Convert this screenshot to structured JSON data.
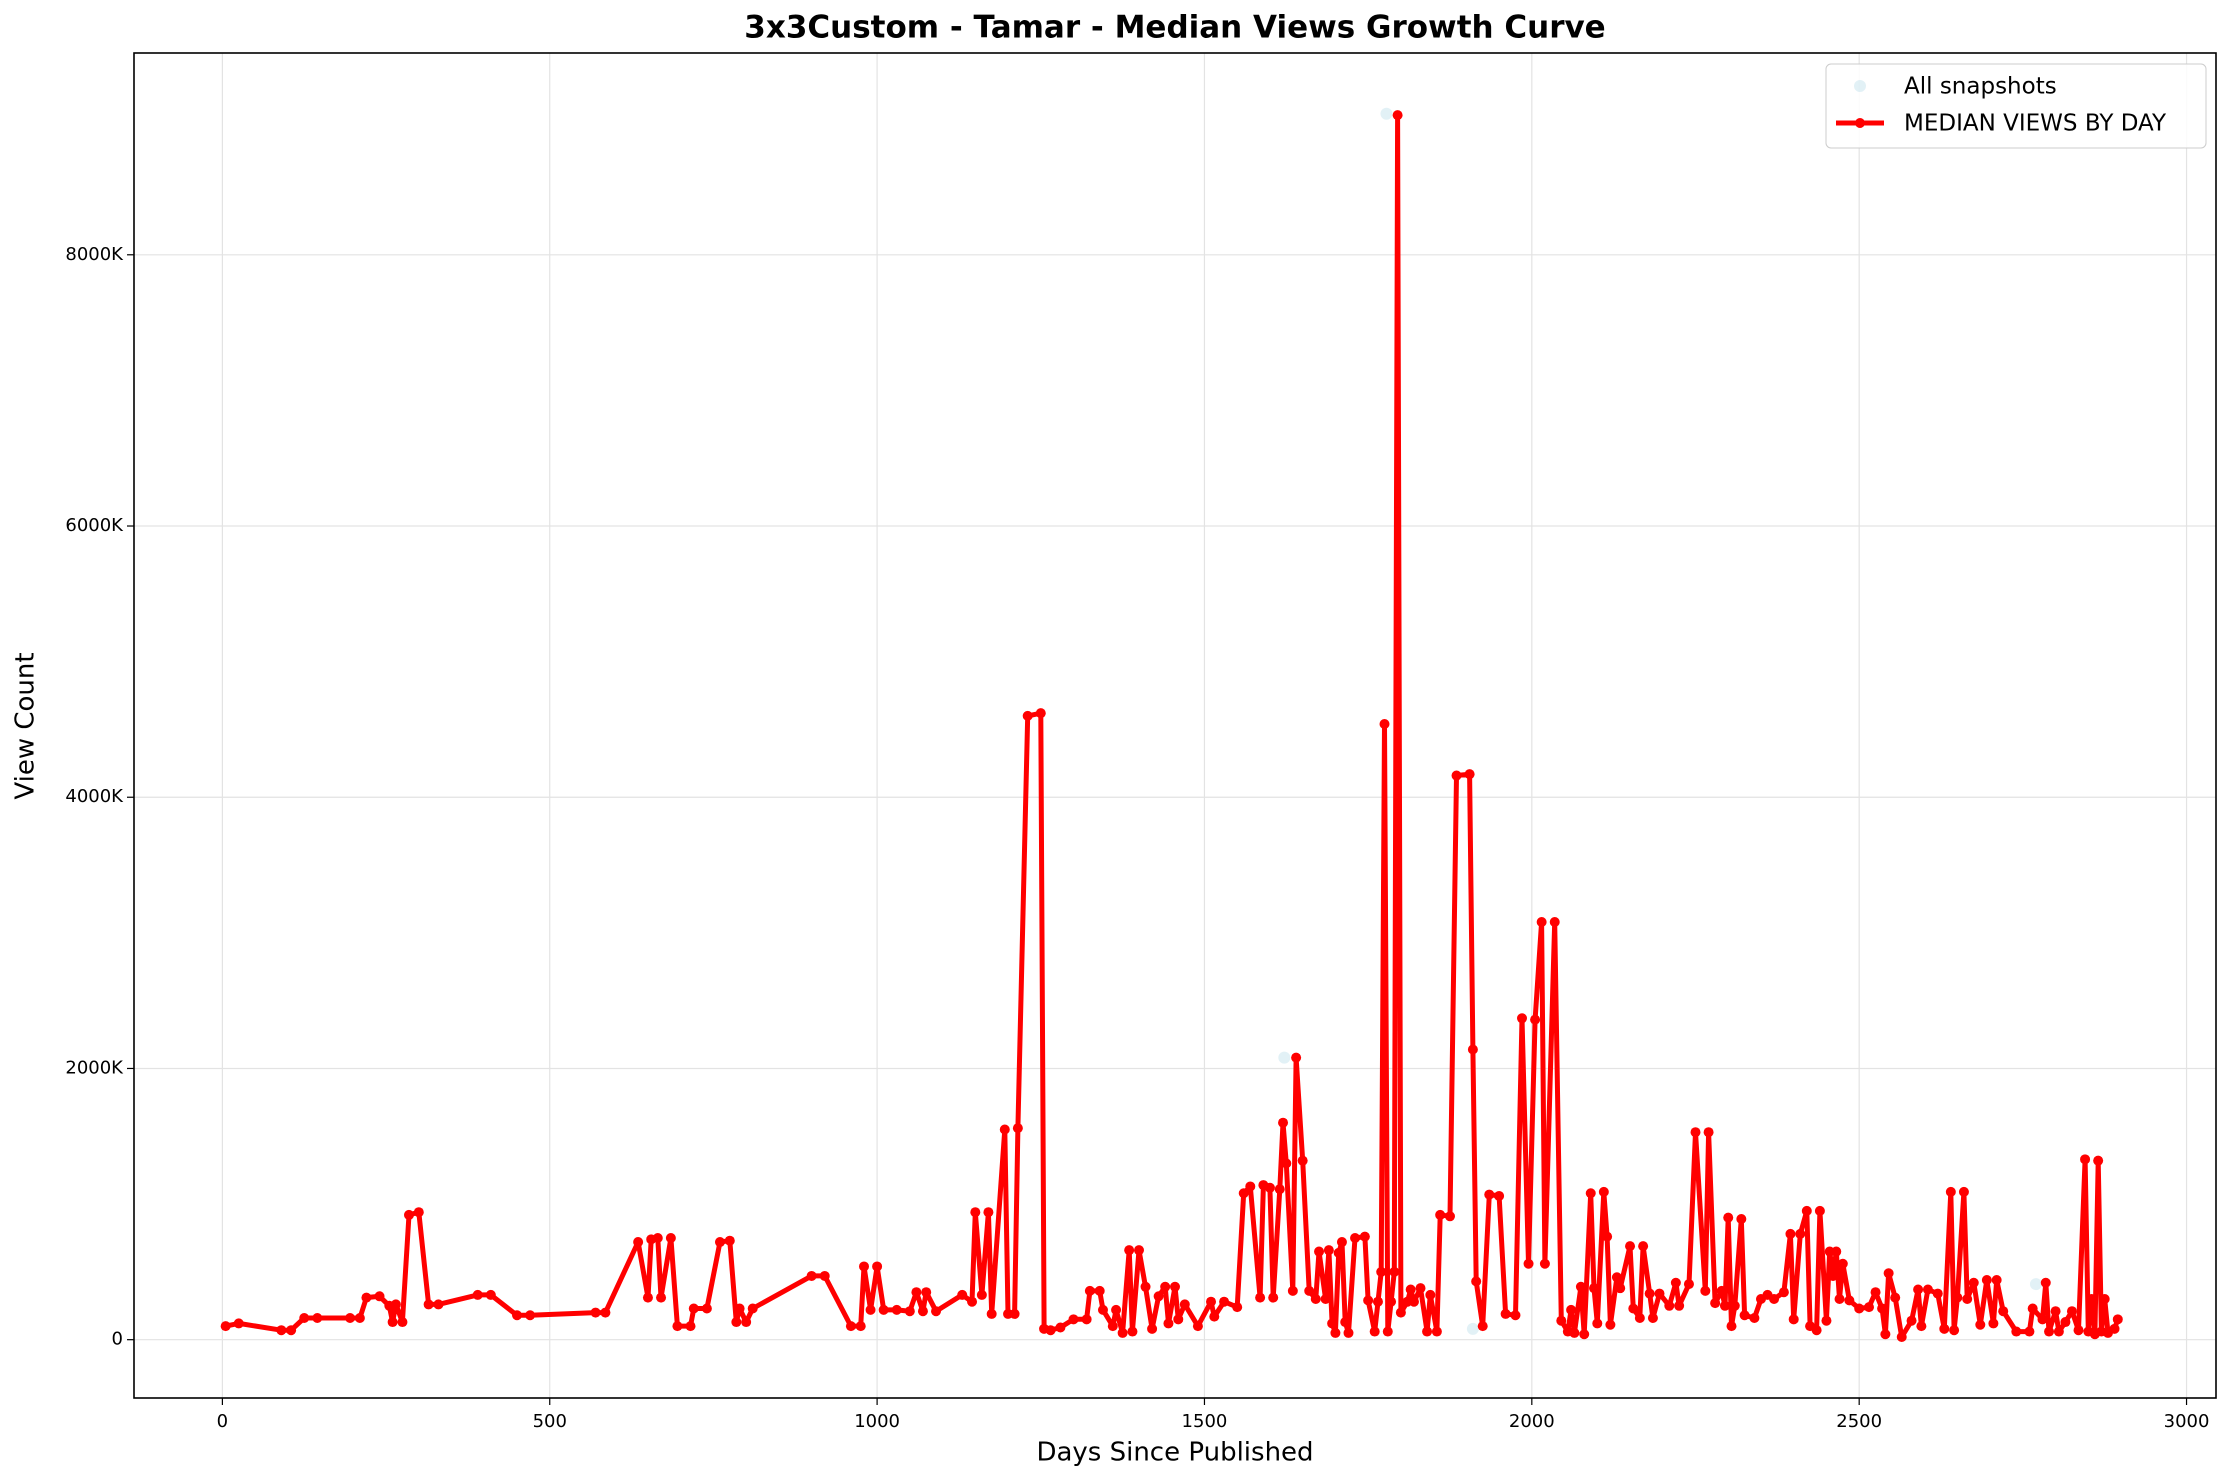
{
  "chart_data": {
    "type": "line",
    "title": "3x3Custom - Tamar - Median Views Growth Curve",
    "xlabel": "Days Since Published",
    "ylabel": "View Count",
    "xlim": [
      -135,
      3045
    ],
    "ylim": [
      -430000,
      9488000
    ],
    "xticks": [
      0,
      500,
      1000,
      1500,
      2000,
      2500,
      3000
    ],
    "yticks": [
      0,
      {
        "value": 2000000,
        "label": "2000K"
      },
      {
        "value": 4000000,
        "label": "4000K"
      },
      {
        "value": 6000000,
        "label": "6000K"
      },
      {
        "value": 8000000,
        "label": "8000K"
      }
    ],
    "grid": true,
    "legend": "upper right",
    "series": [
      {
        "name": "All snapshots",
        "type": "scatter",
        "color": "#add8e6",
        "x": [
          1778,
          1622,
          1910,
          2770
        ],
        "values": [
          9040000,
          2080000,
          80000,
          410000
        ]
      },
      {
        "name": "MEDIAN VIEWS BY DAY",
        "type": "line",
        "color": "#ff0000",
        "x": [
          5,
          25,
          90,
          105,
          125,
          145,
          195,
          210,
          220,
          240,
          255,
          260,
          265,
          275,
          285,
          300,
          315,
          330,
          390,
          410,
          450,
          470,
          570,
          585,
          635,
          650,
          655,
          665,
          670,
          685,
          695,
          715,
          720,
          740,
          760,
          775,
          785,
          790,
          800,
          810,
          900,
          920,
          960,
          975,
          980,
          990,
          1000,
          1010,
          1030,
          1050,
          1060,
          1070,
          1075,
          1090,
          1130,
          1145,
          1150,
          1160,
          1170,
          1175,
          1195,
          1200,
          1210,
          1215,
          1230,
          1250,
          1255,
          1265,
          1280,
          1300,
          1320,
          1325,
          1340,
          1345,
          1360,
          1365,
          1375,
          1385,
          1390,
          1400,
          1410,
          1420,
          1430,
          1440,
          1445,
          1455,
          1460,
          1470,
          1490,
          1510,
          1515,
          1530,
          1550,
          1560,
          1570,
          1585,
          1590,
          1600,
          1605,
          1615,
          1620,
          1625,
          1635,
          1640,
          1650,
          1660,
          1670,
          1675,
          1685,
          1690,
          1695,
          1700,
          1705,
          1710,
          1715,
          1720,
          1730,
          1745,
          1750,
          1760,
          1765,
          1770,
          1775,
          1780,
          1785,
          1790,
          1795,
          1800,
          1810,
          1815,
          1820,
          1830,
          1840,
          1845,
          1855,
          1860,
          1875,
          1885,
          1905,
          1910,
          1915,
          1925,
          1935,
          1950,
          1960,
          1975,
          1985,
          1995,
          2005,
          2015,
          2020,
          2035,
          2045,
          2055,
          2060,
          2065,
          2075,
          2080,
          2090,
          2095,
          2100,
          2110,
          2115,
          2120,
          2130,
          2135,
          2150,
          2155,
          2165,
          2170,
          2180,
          2185,
          2195,
          2210,
          2220,
          2225,
          2240,
          2250,
          2265,
          2270,
          2280,
          2290,
          2295,
          2300,
          2305,
          2310,
          2320,
          2325,
          2340,
          2350,
          2360,
          2370,
          2385,
          2395,
          2400,
          2410,
          2420,
          2425,
          2435,
          2440,
          2450,
          2455,
          2460,
          2465,
          2470,
          2475,
          2485,
          2500,
          2515,
          2525,
          2535,
          2540,
          2545,
          2555,
          2565,
          2580,
          2590,
          2595,
          2605,
          2620,
          2630,
          2640,
          2645,
          2650,
          2660,
          2665,
          2675,
          2685,
          2695,
          2705,
          2710,
          2720,
          2740,
          2760,
          2765,
          2780,
          2785,
          2790,
          2800,
          2805,
          2815,
          2825,
          2835,
          2845,
          2850,
          2855,
          2860,
          2865,
          2870,
          2875,
          2880,
          2890,
          2895
        ],
        "values": [
          100000,
          120000,
          70000,
          70000,
          160000,
          160000,
          160000,
          160000,
          310000,
          320000,
          250000,
          130000,
          260000,
          130000,
          920000,
          940000,
          260000,
          260000,
          330000,
          330000,
          180000,
          180000,
          200000,
          200000,
          720000,
          310000,
          740000,
          750000,
          310000,
          750000,
          100000,
          100000,
          230000,
          230000,
          720000,
          730000,
          130000,
          230000,
          130000,
          230000,
          470000,
          470000,
          100000,
          100000,
          540000,
          220000,
          540000,
          220000,
          220000,
          210000,
          350000,
          210000,
          350000,
          210000,
          330000,
          280000,
          940000,
          330000,
          940000,
          190000,
          1550000,
          190000,
          190000,
          1560000,
          4600000,
          4620000,
          80000,
          70000,
          90000,
          150000,
          150000,
          360000,
          360000,
          220000,
          100000,
          220000,
          50000,
          660000,
          60000,
          660000,
          390000,
          80000,
          320000,
          390000,
          120000,
          390000,
          150000,
          260000,
          100000,
          280000,
          170000,
          280000,
          240000,
          1080000,
          1130000,
          310000,
          1140000,
          1120000,
          310000,
          1110000,
          1600000,
          1300000,
          360000,
          2080000,
          1320000,
          360000,
          300000,
          650000,
          300000,
          660000,
          120000,
          50000,
          640000,
          720000,
          130000,
          50000,
          750000,
          760000,
          290000,
          60000,
          280000,
          500000,
          4540000,
          60000,
          280000,
          500000,
          9030000,
          200000,
          280000,
          370000,
          280000,
          380000,
          60000,
          330000,
          60000,
          920000,
          910000,
          4160000,
          4170000,
          2140000,
          430000,
          100000,
          1070000,
          1060000,
          190000,
          180000,
          2370000,
          560000,
          2360000,
          3080000,
          560000,
          3080000,
          140000,
          60000,
          220000,
          50000,
          390000,
          40000,
          1080000,
          380000,
          120000,
          1090000,
          760000,
          110000,
          460000,
          380000,
          690000,
          230000,
          160000,
          690000,
          340000,
          160000,
          340000,
          250000,
          420000,
          250000,
          410000,
          1530000,
          360000,
          1530000,
          270000,
          360000,
          250000,
          900000,
          100000,
          250000,
          890000,
          180000,
          160000,
          300000,
          330000,
          300000,
          350000,
          780000,
          150000,
          780000,
          950000,
          100000,
          70000,
          950000,
          140000,
          650000,
          470000,
          650000,
          300000,
          560000,
          290000,
          230000,
          240000,
          350000,
          230000,
          40000,
          490000,
          310000,
          20000,
          140000,
          370000,
          100000,
          370000,
          340000,
          80000,
          1090000,
          70000,
          310000,
          1090000,
          300000,
          420000,
          110000,
          440000,
          120000,
          440000,
          210000,
          60000,
          60000,
          230000,
          150000,
          420000,
          60000,
          210000,
          60000,
          130000,
          210000,
          70000,
          1330000,
          60000,
          300000,
          40000,
          1320000,
          60000,
          300000,
          50000,
          80000,
          150000
        ]
      }
    ]
  }
}
